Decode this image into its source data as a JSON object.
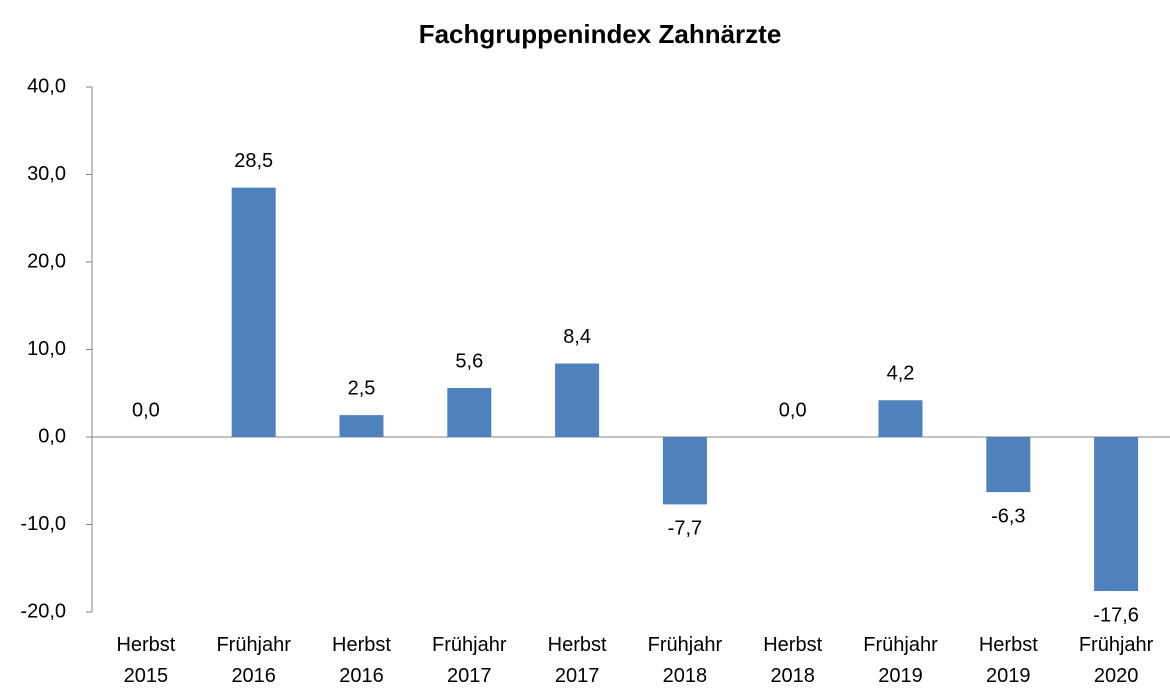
{
  "chart_data": {
    "type": "bar",
    "title": "Fachgruppenindex Zahnärzte",
    "categories": [
      "Herbst 2015",
      "Frühjahr 2016",
      "Herbst 2016",
      "Frühjahr 2017",
      "Herbst 2017",
      "Frühjahr 2018",
      "Herbst 2018",
      "Frühjahr 2019",
      "Herbst 2019",
      "Frühjahr 2020"
    ],
    "values": [
      0.0,
      28.5,
      2.5,
      5.6,
      8.4,
      -7.7,
      0.0,
      4.2,
      -6.3,
      -17.6
    ],
    "value_labels": [
      "0,0",
      "28,5",
      "2,5",
      "5,6",
      "8,4",
      "-7,7",
      "0,0",
      "4,2",
      "-6,3",
      "-17,6"
    ],
    "color": "#4f81bd",
    "ylim": [
      -20,
      40
    ],
    "yticks": [
      {
        "value": -20,
        "label": "-20,0"
      },
      {
        "value": -10,
        "label": "-10,0"
      },
      {
        "value": 0,
        "label": "0,0"
      },
      {
        "value": 10,
        "label": "10,0"
      },
      {
        "value": 20,
        "label": "20,0"
      },
      {
        "value": 30,
        "label": "30,0"
      },
      {
        "value": 40,
        "label": "40,0"
      }
    ],
    "grid": false
  }
}
